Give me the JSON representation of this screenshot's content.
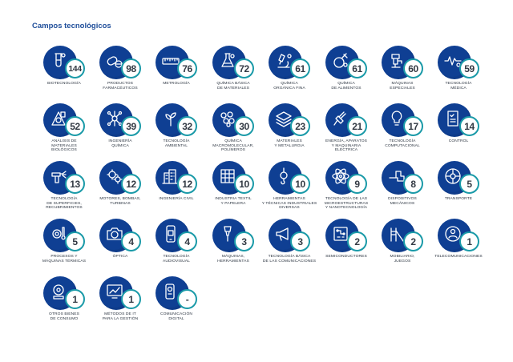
{
  "title": "Campos tecnológicos",
  "fields": [
    {
      "label": "BIOTECNOLOGÍA",
      "count": "144",
      "icon": "test-tube-icon"
    },
    {
      "label": "PRODUCTOS\nFARMACÉUTICOS",
      "count": "98",
      "icon": "pills-icon"
    },
    {
      "label": "METROLOGÍA",
      "count": "76",
      "icon": "ruler-icon"
    },
    {
      "label": "QUÍMICA BÁSICA\nDE MATERIALES",
      "count": "72",
      "icon": "flask-icon"
    },
    {
      "label": "QUÍMICA\nORGÁNICA FINA",
      "count": "61",
      "icon": "microscope-icon"
    },
    {
      "label": "QUÍMICA\nDE ALIMENTOS",
      "count": "61",
      "icon": "food-icon"
    },
    {
      "label": "MÁQUINAS\nESPECIALES",
      "count": "60",
      "icon": "meat-grinder-icon"
    },
    {
      "label": "TECNOLOGÍA\nMÉDICA",
      "count": "59",
      "icon": "stethoscope-icon"
    },
    {
      "label": "ANÁLISIS DE\nMATERIALES\nBIOLÓGICOS",
      "count": "52",
      "icon": "biohazard-icon"
    },
    {
      "label": "INGENIERÍA\nQUÍMICA",
      "count": "39",
      "icon": "molecule-icon"
    },
    {
      "label": "TECNOLOGÍA\nAMBIENTAL",
      "count": "32",
      "icon": "plant-icon"
    },
    {
      "label": "QUÍMICA\nMACROMOLECULAR,\nPOLÍMEROS",
      "count": "30",
      "icon": "polymer-icon"
    },
    {
      "label": "MATERIALES\nY METALURGIA",
      "count": "23",
      "icon": "metal-layers-icon"
    },
    {
      "label": "ENERGÍA, APARATOS\nY MAQUINARIA\nELÉCTRICA",
      "count": "21",
      "icon": "plug-icon"
    },
    {
      "label": "TECNOLOGÍA\nCOMPUTACIONAL",
      "count": "17",
      "icon": "lightbulb-icon"
    },
    {
      "label": "CONTROL",
      "count": "14",
      "icon": "checklist-icon"
    },
    {
      "label": "TECNOLOGÍA\nDE SUPERFICIES,\nRECUBRIMIENTOS",
      "count": "13",
      "icon": "spray-gun-icon"
    },
    {
      "label": "MOTORES, BOMBAS,\nTURBINAS",
      "count": "12",
      "icon": "gears-icon"
    },
    {
      "label": "INGENIERÍA CIVIL",
      "count": "12",
      "icon": "buildings-icon"
    },
    {
      "label": "INDUSTRIA TEXTIL\nY PAPELERA",
      "count": "10",
      "icon": "textile-icon"
    },
    {
      "label": "HERRAMIENTAS\nY TÉCNICAS INDUSTRIALES\nDIVERSAS",
      "count": "10",
      "icon": "crane-hook-icon"
    },
    {
      "label": "TECNOLOGÍA DE LAS\nMICROESTRUCTURAS\nY NANOTECNOLOGÍA",
      "count": "9",
      "icon": "atom-icon"
    },
    {
      "label": "DISPOSITIVOS\nMECÁNICOS",
      "count": "8",
      "icon": "pipe-icon"
    },
    {
      "label": "TRANSPORTE",
      "count": "5",
      "icon": "wheel-icon"
    },
    {
      "label": "PROCESOS Y\nMÁQUINAS TÉRMICAS",
      "count": "5",
      "icon": "thermometer-gear-icon"
    },
    {
      "label": "ÓPTICA",
      "count": "4",
      "icon": "camera-icon"
    },
    {
      "label": "TECNOLOGÍA\nAUDIOVISUAL",
      "count": "4",
      "icon": "phone-icon"
    },
    {
      "label": "MÁQUINAS,\nHERRAMIENTAS",
      "count": "3",
      "icon": "drill-icon"
    },
    {
      "label": "TECNOLOGÍA BÁSICA\nDE LAS COMUNICACIONES",
      "count": "3",
      "icon": "megaphone-icon"
    },
    {
      "label": "SEMICONDUCTORES",
      "count": "2",
      "icon": "circuit-icon"
    },
    {
      "label": "MOBILIARIO,\nJUEGOS",
      "count": "2",
      "icon": "slide-icon"
    },
    {
      "label": "TELECOMUNICACIONES",
      "count": "1",
      "icon": "network-icon"
    },
    {
      "label": "OTROS BIENES\nDE CONSUMO",
      "count": "1",
      "icon": "shopping-icon"
    },
    {
      "label": "MÉTODOS DE IT\nPARA LA GESTIÓN",
      "count": "1",
      "icon": "monitor-chart-icon"
    },
    {
      "label": "COMUNICACIÓN\nDIGITAL",
      "count": "-",
      "icon": "devices-icon"
    }
  ],
  "colors": {
    "circle": "#0f3f93",
    "ring": "#1a9aa8",
    "title": "#1f4e9a",
    "label": "#2b3440"
  }
}
